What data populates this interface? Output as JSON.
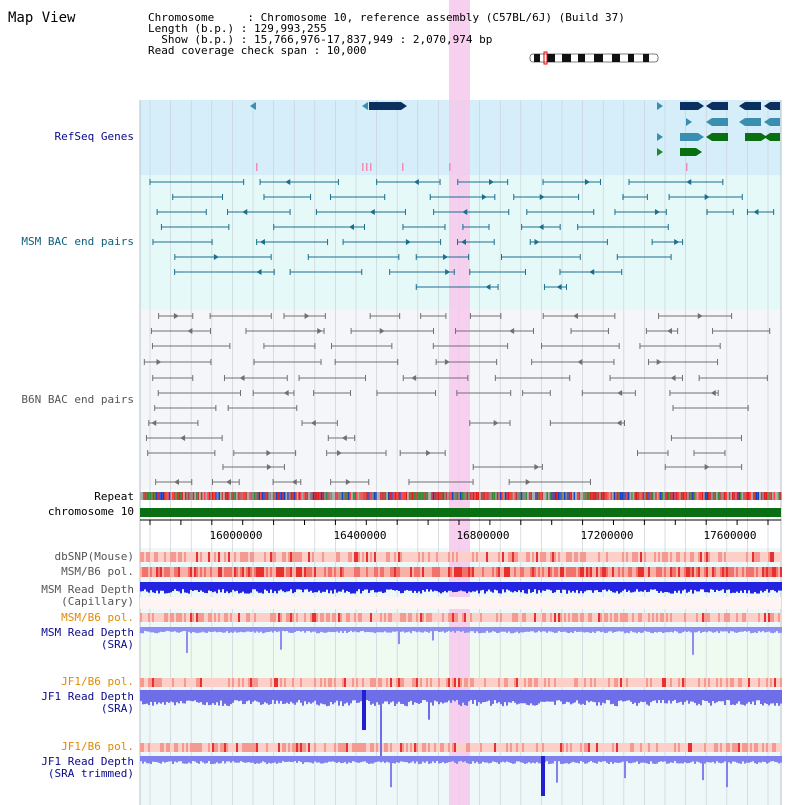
{
  "title": "Map View",
  "header": {
    "line1": "Chromosome     : Chromosome 10, reference assembly (C57BL/6J) (Build 37)",
    "line2": "Length (b.p.) : 129,993,255",
    "line3": "  Show (b.p.) : 15,766,976-17,837,949 : 2,070,974 bp",
    "line4": "Read coverage check span : 10,000"
  },
  "tracks": {
    "refseq": "RefSeq Genes",
    "msm_bac": "MSM BAC end pairs",
    "b6n_bac": "B6N BAC end pairs",
    "repeat": "Repeat",
    "chromosome": "chromosome 10",
    "dbsnp": "dbSNP(Mouse)",
    "msm_b6_pol_1": "MSM/B6 pol.",
    "msm_read_cap_1": "MSM Read Depth",
    "msm_read_cap_2": "(Capillary)",
    "msm_b6_pol_2": "MSM/B6 pol.",
    "msm_read_sra_1": "MSM Read Depth",
    "msm_read_sra_2": "(SRA)",
    "jf1_b6_pol_1": "JF1/B6 pol.",
    "jf1_read_sra_1": "JF1 Read Depth",
    "jf1_read_sra_2": "(SRA)",
    "jf1_b6_pol_2": "JF1/B6 pol.",
    "jf1_read_trim_1": "JF1 Read Depth",
    "jf1_read_trim_2": "(SRA trimmed)"
  },
  "axis_ticks": [
    "16000000",
    "16400000",
    "16800000",
    "17200000",
    "17600000"
  ],
  "colors": {
    "label_blue": "#0b0b8a",
    "label_teal": "#0e5f7d",
    "label_gray": "#555555",
    "label_orange": "#e08a00",
    "highlight": "#f7c8ec"
  }
}
